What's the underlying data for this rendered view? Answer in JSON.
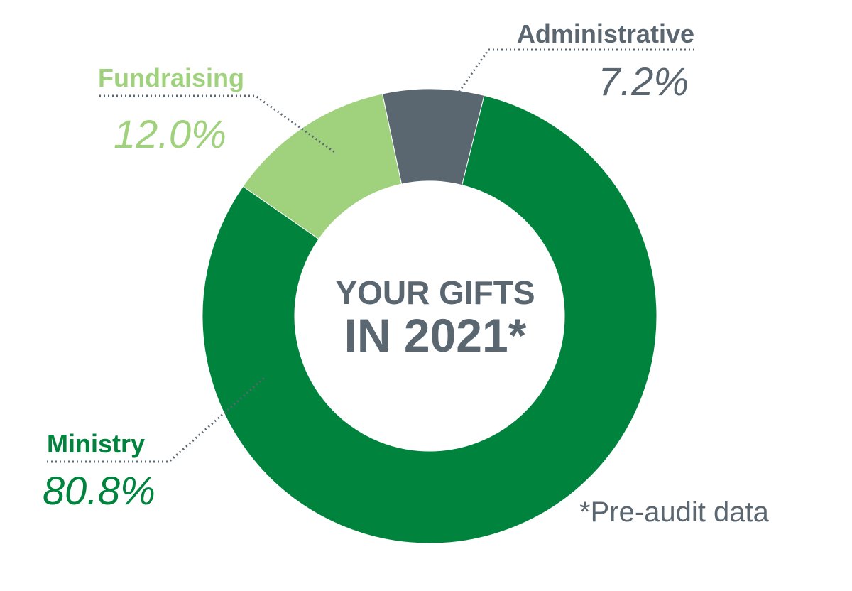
{
  "chart_data": {
    "type": "pie",
    "subtype": "donut",
    "center_text": {
      "line1": "YOUR GIFTS",
      "line2": "IN 2021*"
    },
    "slices": [
      {
        "label": "Administrative",
        "value": 7.2,
        "value_label": "7.2%",
        "color": "#5a6670"
      },
      {
        "label": "Ministry",
        "value": 80.8,
        "value_label": "80.8%",
        "color": "#00843d"
      },
      {
        "label": "Fundraising",
        "value": 12.0,
        "value_label": "12.0%",
        "color": "#a0d27e"
      }
    ],
    "footnote": "*Pre-audit data",
    "legend": "none"
  }
}
